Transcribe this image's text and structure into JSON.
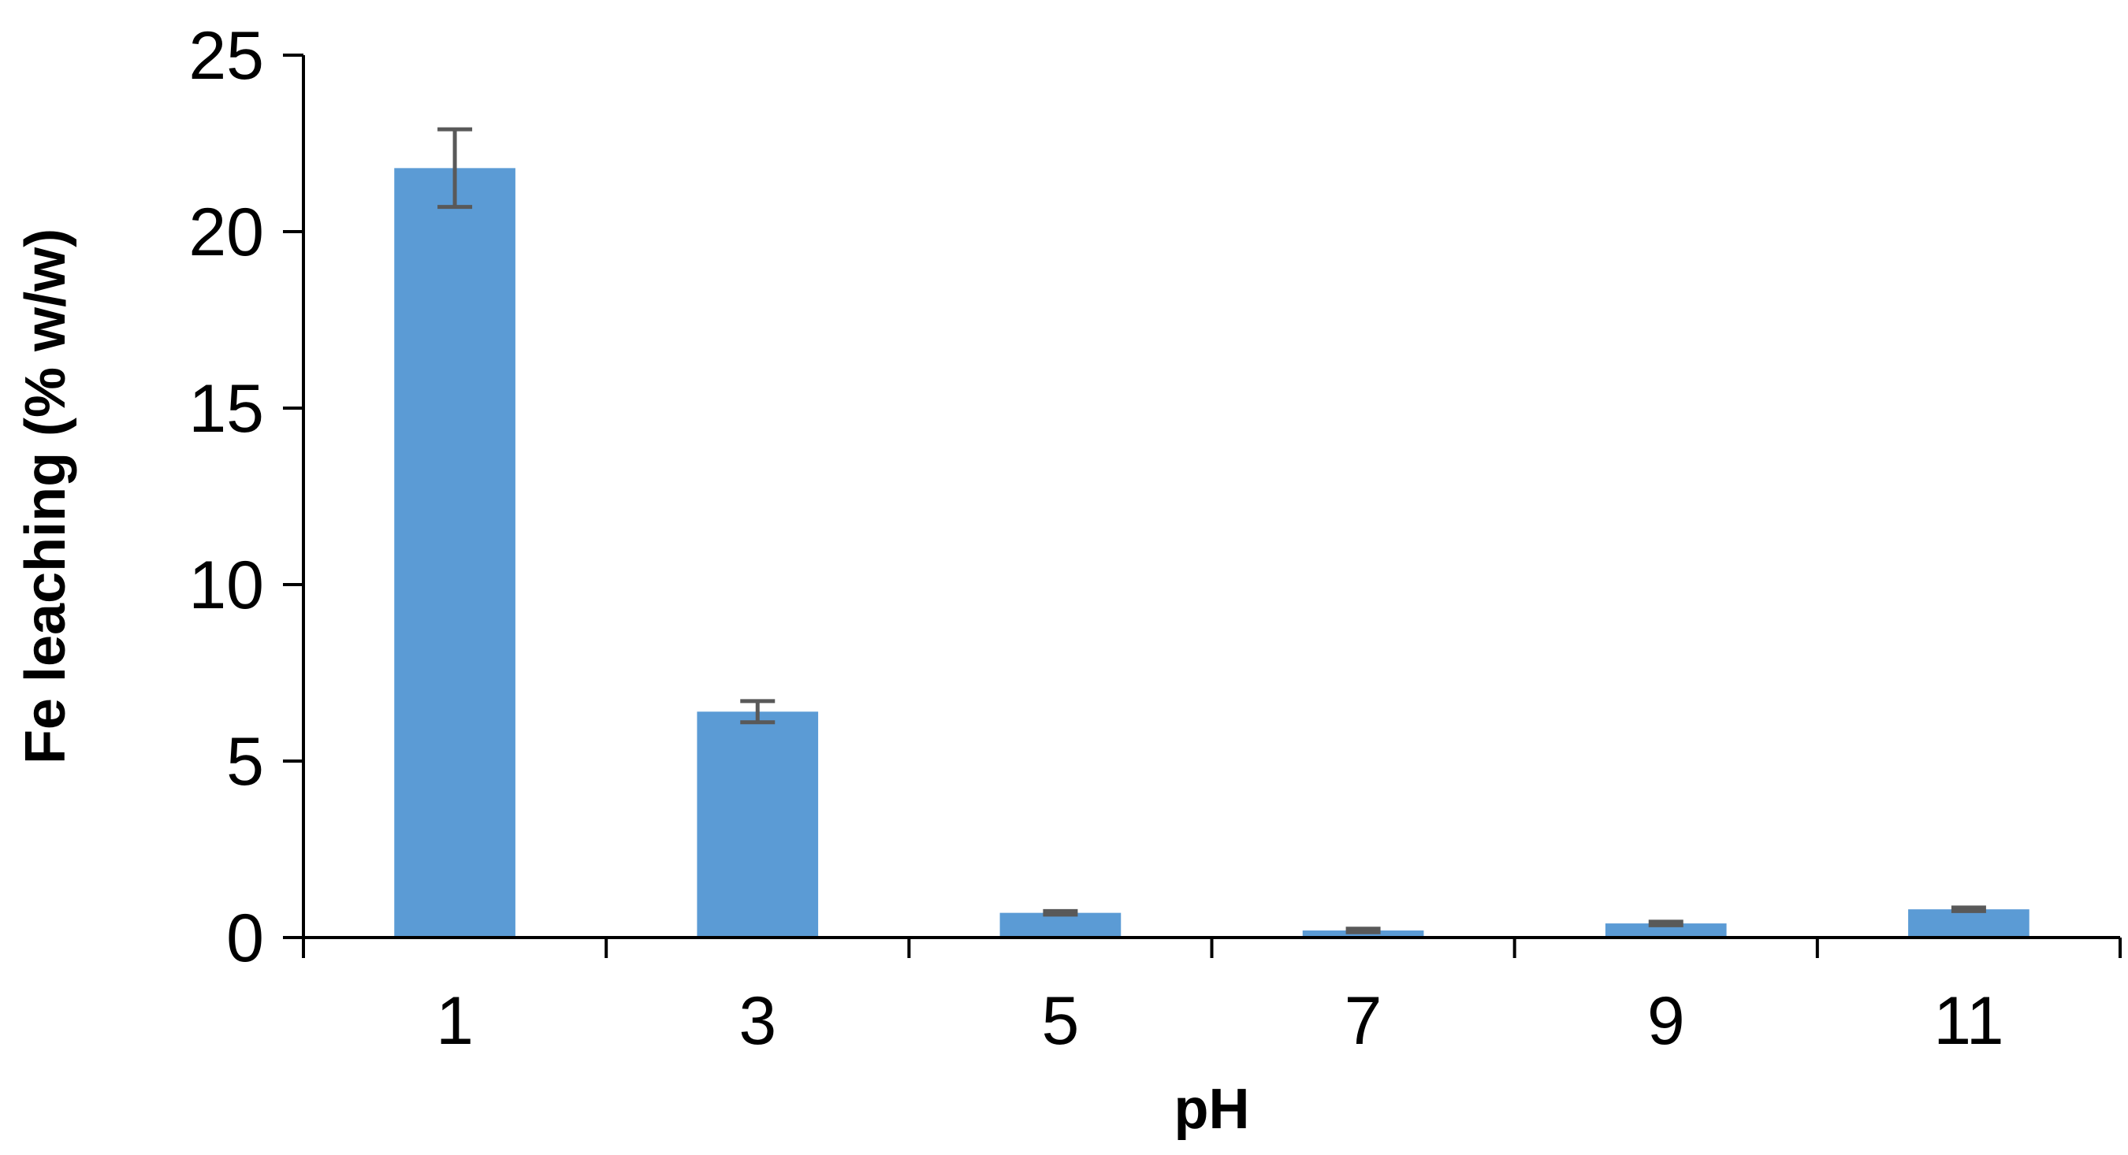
{
  "chart_data": {
    "type": "bar",
    "title": "",
    "xlabel": "pH",
    "ylabel": "Fe leaching (% w/w)",
    "categories": [
      "1",
      "3",
      "5",
      "7",
      "9",
      "11"
    ],
    "values": [
      21.8,
      6.4,
      0.7,
      0.2,
      0.4,
      0.8
    ],
    "errors": [
      1.1,
      0.3,
      0.05,
      0.05,
      0.05,
      0.05
    ],
    "ylim": [
      0,
      25
    ],
    "yticks": [
      0,
      5,
      10,
      15,
      20,
      25
    ],
    "grid": false,
    "legend": "none",
    "bar_color": "#5B9BD5",
    "error_bar_color": "#595959",
    "axis_color": "#000000"
  }
}
